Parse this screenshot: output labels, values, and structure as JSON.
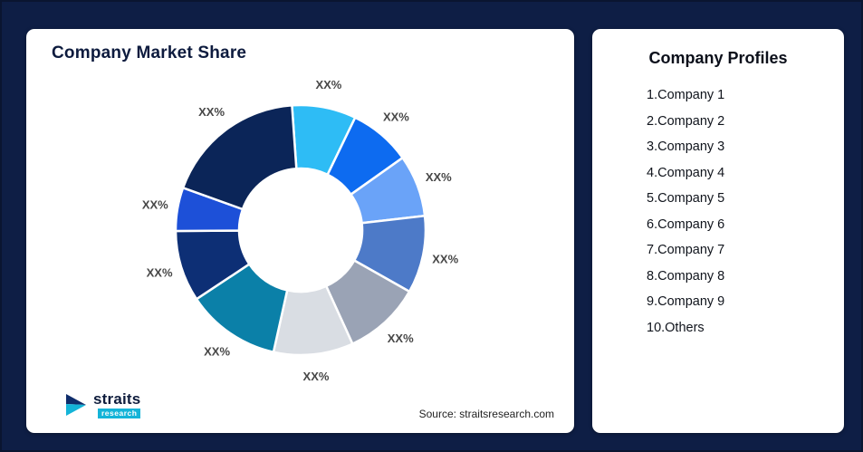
{
  "page": {
    "background_color": "#0e1e45"
  },
  "left_card": {
    "title": "Company Market Share",
    "source_note": "Source: straitsresearch.com",
    "logo": {
      "name": "straits",
      "subtext": "research"
    }
  },
  "right_card": {
    "title": "Company Profiles",
    "items": [
      "1.Company 1",
      "2.Company 2",
      "3.Company 3",
      "4.Company 4",
      "5.Company 5",
      "6.Company 6",
      "7.Company 7",
      "8.Company 8",
      "9.Company 9",
      "10.Others"
    ]
  },
  "chart_data": {
    "type": "pie",
    "donut": true,
    "title": "Company Market Share",
    "categories": [
      "Company 1",
      "Company 2",
      "Company 3",
      "Company 4",
      "Company 5",
      "Company 6",
      "Company 7",
      "Company 8",
      "Company 9",
      "Others"
    ],
    "labels": [
      "XX%",
      "XX%",
      "XX%",
      "XX%",
      "XX%",
      "XX%",
      "XX%",
      "XX%",
      "XX%",
      "XX%"
    ],
    "values": [
      8.3,
      8,
      8,
      10,
      10,
      10.3,
      12.2,
      9.2,
      5.6,
      18.4
    ],
    "colors": [
      "#2ebcf5",
      "#0d6bf0",
      "#6aa3f8",
      "#4d7ac8",
      "#9aa3b5",
      "#d9dde3",
      "#0b80a8",
      "#0d2f75",
      "#1d50d8",
      "#0b2558"
    ],
    "start_angle": -4,
    "legend_position": "none",
    "source": "Source: straitsresearch.com"
  }
}
